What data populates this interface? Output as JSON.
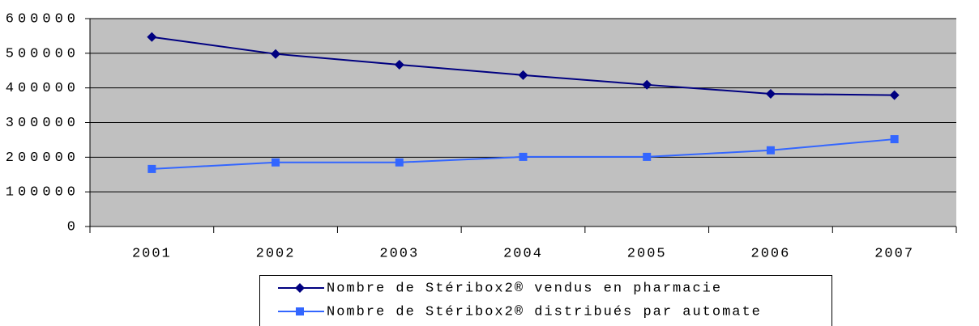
{
  "chart_data": {
    "type": "line",
    "categories": [
      "2001",
      "2002",
      "2003",
      "2004",
      "2005",
      "2006",
      "2007"
    ],
    "series": [
      {
        "name": "Nombre de Stéribox2® vendus en pharmacie",
        "color": "#000080",
        "marker": "diamond",
        "values": [
          547000,
          498000,
          467000,
          437000,
          409000,
          383000,
          379000
        ]
      },
      {
        "name": "Nombre de Stéribox2® distribués par automate",
        "color": "#3366ff",
        "marker": "square",
        "values": [
          166000,
          185000,
          185000,
          201000,
          201000,
          220000,
          252000
        ]
      }
    ],
    "ylim": [
      0,
      600000
    ],
    "yticks": [
      0,
      100000,
      200000,
      300000,
      400000,
      500000,
      600000
    ],
    "grid": true,
    "plot_background": "#c0c0c0",
    "legend": "bottom"
  }
}
